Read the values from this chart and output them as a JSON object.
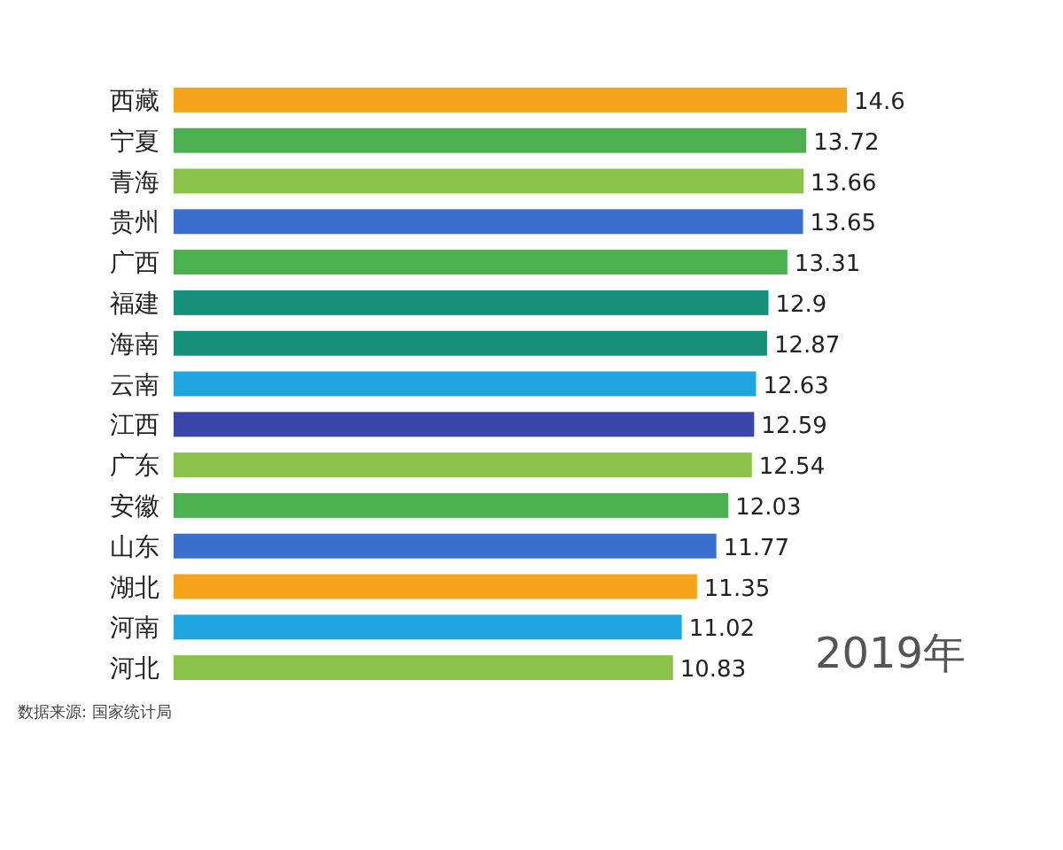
{
  "chart_data": {
    "type": "bar",
    "orientation": "horizontal",
    "data_labels": true,
    "categories": [
      "西藏",
      "宁夏",
      "青海",
      "贵州",
      "广西",
      "福建",
      "海南",
      "云南",
      "江西",
      "广东",
      "安徽",
      "山东",
      "湖北",
      "河南",
      "河北"
    ],
    "values": [
      14.6,
      13.72,
      13.66,
      13.65,
      13.31,
      12.9,
      12.87,
      12.63,
      12.59,
      12.54,
      12.03,
      11.77,
      11.35,
      11.02,
      10.83
    ],
    "colors": [
      "#f5a31a",
      "#4caf50",
      "#8bc34a",
      "#3a6fd0",
      "#4caf50",
      "#16907a",
      "#16907a",
      "#1fa6e0",
      "#3a45a8",
      "#8bc34a",
      "#4caf50",
      "#3a6fd0",
      "#f5a31a",
      "#1fa6e0",
      "#8bc34a"
    ],
    "annotations": [
      "2019年",
      "数据来源: 国家统计局"
    ]
  }
}
